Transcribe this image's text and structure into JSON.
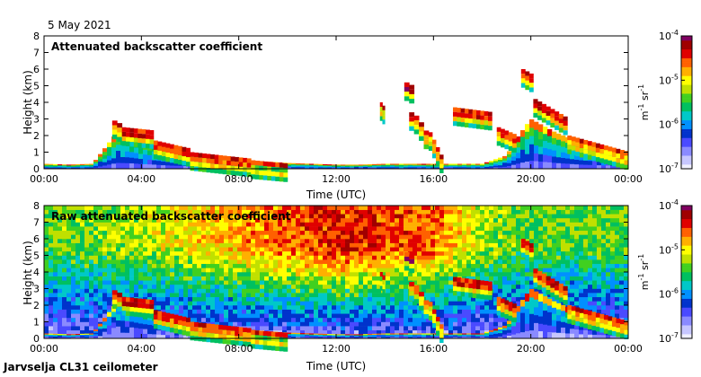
{
  "figure": {
    "date_label": "5 May 2021",
    "footer_label": "Jarvselja CL31 ceilometer",
    "colors": {
      "axes": "#000000",
      "palette": [
        "#f0f0ff",
        "#c6c6ff",
        "#8a8aff",
        "#4a4aff",
        "#0033cc",
        "#0090ff",
        "#00c8c8",
        "#00c060",
        "#40d020",
        "#c0e000",
        "#ffff00",
        "#ffb000",
        "#ff6000",
        "#e00000",
        "#a00000",
        "#800060"
      ]
    }
  },
  "chart_data": [
    {
      "type": "heatmap",
      "title": "Attenuated backscatter coefficient",
      "xlabel": "Time (UTC)",
      "ylabel": "Height (km)",
      "x_range": [
        0,
        24
      ],
      "x_ticks": [
        0,
        4,
        8,
        12,
        16,
        20,
        24
      ],
      "x_tick_labels": [
        "00:00",
        "04:00",
        "08:00",
        "12:00",
        "16:00",
        "20:00",
        "00:00"
      ],
      "ylim": [
        0,
        8
      ],
      "y_ticks": [
        0,
        1,
        2,
        3,
        4,
        5,
        6,
        7,
        8
      ],
      "y_tick_labels": [
        "0",
        "1",
        "2",
        "3",
        "4",
        "5",
        "6",
        "7",
        "8"
      ],
      "colorbar": {
        "scale": "log",
        "range": [
          1e-07,
          0.0001
        ],
        "tick_labels": [
          {
            "base": "10",
            "exp": "-4"
          },
          {
            "base": "10",
            "exp": "-5"
          },
          {
            "base": "10",
            "exp": "-6"
          },
          {
            "base": "10",
            "exp": "-7"
          }
        ],
        "unit_base": [
          "m",
          "sr"
        ],
        "unit_exp": [
          "-1",
          "-1"
        ]
      },
      "features": {
        "surface_layer_top_km": 0.3,
        "aerosol_layer_top_km": [
          [
            0,
            0.3
          ],
          [
            1,
            0.25
          ],
          [
            2,
            0.3
          ],
          [
            3,
            2.2
          ],
          [
            3.5,
            2.1
          ],
          [
            4,
            1.8
          ],
          [
            4.5,
            1.6
          ],
          [
            5,
            1.3
          ],
          [
            6,
            1.0
          ],
          [
            7,
            0.8
          ],
          [
            8,
            0.6
          ],
          [
            9,
            0.45
          ],
          [
            10,
            0.35
          ],
          [
            11,
            0.3
          ],
          [
            12,
            0.25
          ],
          [
            13,
            0.25
          ],
          [
            14,
            0.3
          ],
          [
            15,
            0.3
          ],
          [
            16,
            0.3
          ],
          [
            18,
            0.3
          ],
          [
            19,
            0.8
          ],
          [
            19.5,
            2.0
          ],
          [
            20,
            3.0
          ],
          [
            20.5,
            2.6
          ],
          [
            21,
            2.2
          ],
          [
            22,
            1.6
          ],
          [
            23,
            1.3
          ],
          [
            24,
            1.0
          ]
        ],
        "clouds": [
          {
            "t0": 2.8,
            "t1": 3.2,
            "h0": 2.6,
            "h1": 2.9,
            "level": 12
          },
          {
            "t0": 3.2,
            "t1": 4.5,
            "h0": 2.3,
            "h1": 2.5,
            "level": 13
          },
          {
            "t0": 4.5,
            "t1": 6.0,
            "h0": 1.2,
            "h1": 1.7,
            "level": 12
          },
          {
            "t0": 6.0,
            "t1": 8.5,
            "h0": 0.6,
            "h1": 1.0,
            "level": 12
          },
          {
            "t0": 8.5,
            "t1": 10.0,
            "h0": 0.3,
            "h1": 0.5,
            "level": 8
          },
          {
            "t0": 13.8,
            "t1": 14.0,
            "h0": 3.6,
            "h1": 4.0,
            "level": 9
          },
          {
            "t0": 14.8,
            "t1": 15.2,
            "h0": 4.9,
            "h1": 5.2,
            "level": 15
          },
          {
            "t0": 15.0,
            "t1": 15.4,
            "h0": 3.0,
            "h1": 3.4,
            "level": 12
          },
          {
            "t0": 15.4,
            "t1": 15.8,
            "h0": 1.8,
            "h1": 2.8,
            "level": 11
          },
          {
            "t0": 15.8,
            "t1": 16.4,
            "h0": 0.4,
            "h1": 2.2,
            "level": 10
          },
          {
            "t0": 16.8,
            "t1": 18.4,
            "h0": 3.4,
            "h1": 3.7,
            "level": 13
          },
          {
            "t0": 18.6,
            "t1": 19.4,
            "h0": 2.0,
            "h1": 2.5,
            "level": 12
          },
          {
            "t0": 19.6,
            "t1": 20.1,
            "h0": 5.6,
            "h1": 6.0,
            "level": 13
          },
          {
            "t0": 20.1,
            "t1": 21.5,
            "h0": 3.0,
            "h1": 4.2,
            "level": 13
          },
          {
            "t0": 21.5,
            "t1": 24.0,
            "h0": 1.0,
            "h1": 2.0,
            "level": 11
          }
        ]
      }
    },
    {
      "type": "heatmap",
      "title": "Raw attenuated backscatter coefficient",
      "xlabel": "Time (UTC)",
      "ylabel": "Height (km)",
      "x_range": [
        0,
        24
      ],
      "x_ticks": [
        0,
        4,
        8,
        12,
        16,
        20,
        24
      ],
      "x_tick_labels": [
        "00:00",
        "04:00",
        "08:00",
        "12:00",
        "16:00",
        "20:00",
        "00:00"
      ],
      "ylim": [
        0,
        8
      ],
      "y_ticks": [
        0,
        1,
        2,
        3,
        4,
        5,
        6,
        7,
        8
      ],
      "y_tick_labels": [
        "0",
        "1",
        "2",
        "3",
        "4",
        "5",
        "6",
        "7",
        "8"
      ],
      "colorbar": {
        "scale": "log",
        "range": [
          1e-07,
          0.0001
        ],
        "tick_labels": [
          {
            "base": "10",
            "exp": "-4"
          },
          {
            "base": "10",
            "exp": "-5"
          },
          {
            "base": "10",
            "exp": "-6"
          },
          {
            "base": "10",
            "exp": "-7"
          }
        ],
        "unit_base": [
          "m",
          "sr"
        ],
        "unit_exp": [
          "-1",
          "-1"
        ]
      },
      "features": {
        "noise_high_level_by_hour": [
          [
            0,
            8
          ],
          [
            4,
            9
          ],
          [
            8,
            11
          ],
          [
            12,
            13
          ],
          [
            16,
            12
          ],
          [
            18,
            9
          ],
          [
            20,
            8
          ],
          [
            24,
            8
          ]
        ],
        "clouds_same_as_panel": 0
      }
    }
  ]
}
